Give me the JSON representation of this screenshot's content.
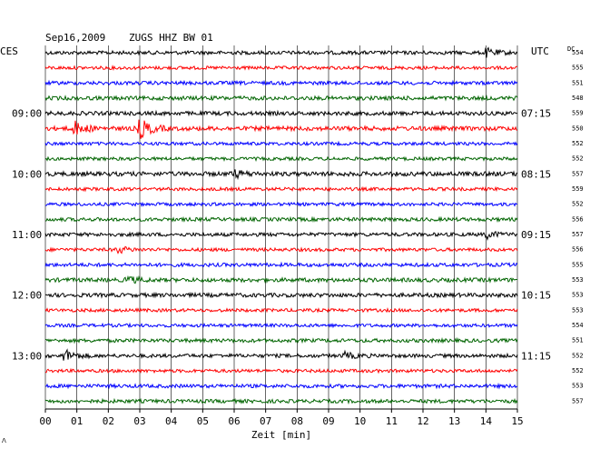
{
  "header": {
    "date": "Sep16,2009",
    "station": "ZUGS HHZ BW 01",
    "left_zone": "CES",
    "right_zone": "UTC",
    "dc_label": "DC"
  },
  "footer": {
    "xlabel": "Zeit [min]",
    "corner_mark": "ᐱ"
  },
  "colors": {
    "black": "#000000",
    "red": "#ff0000",
    "blue": "#0000ff",
    "green": "#006400",
    "grid": "#000000"
  },
  "chart_data": {
    "type": "line",
    "title": "Sep16,2009 ZUGS HHZ BW 01",
    "xlabel": "Zeit [min]",
    "xlim": [
      0,
      15
    ],
    "x_ticks": [
      "00",
      "01",
      "02",
      "03",
      "04",
      "05",
      "06",
      "07",
      "08",
      "09",
      "10",
      "11",
      "12",
      "13",
      "14",
      "15"
    ],
    "left_time_labels": [
      {
        "trace": 4,
        "text": "09:00"
      },
      {
        "trace": 8,
        "text": "10:00"
      },
      {
        "trace": 12,
        "text": "11:00"
      },
      {
        "trace": 16,
        "text": "12:00"
      },
      {
        "trace": 20,
        "text": "13:00"
      }
    ],
    "right_time_labels": [
      {
        "trace": 4,
        "text": "07:15"
      },
      {
        "trace": 8,
        "text": "08:15"
      },
      {
        "trace": 12,
        "text": "09:15"
      },
      {
        "trace": 16,
        "text": "10:15"
      },
      {
        "trace": 20,
        "text": "11:15"
      }
    ],
    "trace_colors": [
      "black",
      "red",
      "blue",
      "green"
    ],
    "traces": [
      {
        "dc": "554",
        "amp": 1.0,
        "events": [
          {
            "t": 14.0,
            "a": 2.0
          }
        ]
      },
      {
        "dc": "555",
        "amp": 0.9,
        "events": []
      },
      {
        "dc": "551",
        "amp": 1.0,
        "events": []
      },
      {
        "dc": "548",
        "amp": 1.1,
        "events": []
      },
      {
        "dc": "559",
        "amp": 1.1,
        "events": []
      },
      {
        "dc": "550",
        "amp": 1.2,
        "events": [
          {
            "t": 0.9,
            "a": 3.5
          },
          {
            "t": 3.0,
            "a": 5.0
          }
        ]
      },
      {
        "dc": "552",
        "amp": 0.9,
        "events": []
      },
      {
        "dc": "552",
        "amp": 0.9,
        "events": []
      },
      {
        "dc": "557",
        "amp": 1.2,
        "events": [
          {
            "t": 6.0,
            "a": 1.8
          }
        ]
      },
      {
        "dc": "559",
        "amp": 0.9,
        "events": []
      },
      {
        "dc": "552",
        "amp": 0.9,
        "events": []
      },
      {
        "dc": "556",
        "amp": 1.0,
        "events": []
      },
      {
        "dc": "557",
        "amp": 1.0,
        "events": [
          {
            "t": 14.0,
            "a": 1.8
          }
        ]
      },
      {
        "dc": "556",
        "amp": 0.9,
        "events": [
          {
            "t": 2.3,
            "a": 1.6
          }
        ]
      },
      {
        "dc": "555",
        "amp": 1.0,
        "events": []
      },
      {
        "dc": "553",
        "amp": 1.1,
        "events": [
          {
            "t": 2.6,
            "a": 1.6
          }
        ]
      },
      {
        "dc": "553",
        "amp": 1.1,
        "events": []
      },
      {
        "dc": "553",
        "amp": 0.9,
        "events": []
      },
      {
        "dc": "554",
        "amp": 0.9,
        "events": []
      },
      {
        "dc": "551",
        "amp": 1.0,
        "events": []
      },
      {
        "dc": "552",
        "amp": 1.0,
        "events": [
          {
            "t": 0.6,
            "a": 3.0
          },
          {
            "t": 9.5,
            "a": 1.5
          }
        ]
      },
      {
        "dc": "552",
        "amp": 0.9,
        "events": []
      },
      {
        "dc": "553",
        "amp": 1.0,
        "events": []
      },
      {
        "dc": "557",
        "amp": 1.0,
        "events": []
      }
    ]
  }
}
